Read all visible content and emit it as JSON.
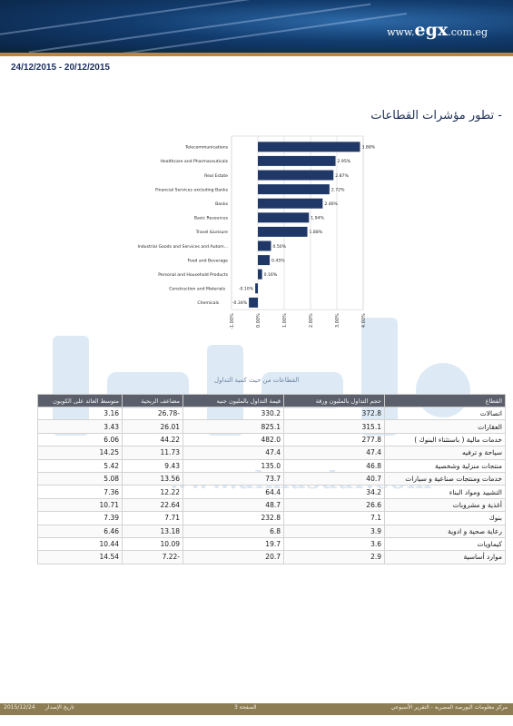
{
  "header": {
    "site_prefix": "www.",
    "site_brand": "egx",
    "site_suffix": ".com.eg"
  },
  "date_range": "24/12/2015 - 20/12/2015",
  "section_title": "- تطور مؤشرات القطاعات",
  "watermark": {
    "text": "www.almasdar.com"
  },
  "chart_data": {
    "type": "bar",
    "orientation": "horizontal",
    "categories": [
      "Telecommunications",
      "Healthcare and Pharmaceuticals",
      "Real Estate",
      "Financial Services excluding Banks",
      "Banks",
      "Basic Resources",
      "Travel &Leisure",
      "Industrial Goods and Services and Autom...",
      "Food and Beverage",
      "Personal and Household Products",
      "Construction and Materials",
      "Chemicals"
    ],
    "values": [
      3.88,
      2.95,
      2.87,
      2.72,
      2.46,
      1.94,
      1.88,
      0.5,
      0.45,
      0.16,
      -0.1,
      -0.34
    ],
    "value_labels": [
      "3.88%",
      "2.95%",
      "2.87%",
      "2.72%",
      "2.46%",
      "1.94%",
      "1.88%",
      "0.50%",
      "0.45%",
      "0.16%",
      "-0.10%",
      "-0.34%"
    ],
    "x_ticks": [
      -1,
      0,
      1,
      2,
      3,
      4
    ],
    "x_tick_labels": [
      "-1.00%",
      "0.00%",
      "1.00%",
      "2.00%",
      "3.00%",
      "4.00%"
    ],
    "xlim": [
      -1,
      4
    ],
    "bar_color": "#1f3868",
    "grid": true
  },
  "table": {
    "caption": "القطاعات من حيث كمية التداول",
    "headers": [
      "القطاع",
      "حجم التداول بالمليون ورقة",
      "قيمة التداول بالمليون جنيه",
      "مضاعف الربحية",
      "متوسط العائد على الكوبون"
    ],
    "rows": [
      [
        "اتصالات",
        "372.8",
        "330.2",
        "26.78-",
        "3.16"
      ],
      [
        "العقارات",
        "315.1",
        "825.1",
        "26.01",
        "3.43"
      ],
      [
        "خدمات مالية ( باستثناء البنوك )",
        "277.8",
        "482.0",
        "44.22",
        "6.06"
      ],
      [
        "سياحة و ترفيه",
        "47.4",
        "47.4",
        "11.73",
        "14.25"
      ],
      [
        "منتجات منزلية وشخصية",
        "46.8",
        "135.0",
        "9.43",
        "5.42"
      ],
      [
        "خدمات ومنتجات صناعية و سيارات",
        "40.7",
        "73.7",
        "13.56",
        "5.08"
      ],
      [
        "التشييد ومواد البناء",
        "34.2",
        "64.4",
        "12.22",
        "7.36"
      ],
      [
        "أغذية و مشروبات",
        "26.6",
        "48.7",
        "22.64",
        "10.71"
      ],
      [
        "بنوك",
        "7.1",
        "232.8",
        "7.71",
        "7.39"
      ],
      [
        "رعاية صحية و ادوية",
        "3.9",
        "6.8",
        "13.18",
        "6.46"
      ],
      [
        "كيماويات",
        "3.6",
        "19.7",
        "10.09",
        "10.44"
      ],
      [
        "موارد أساسية",
        "2.9",
        "20.7",
        "7.22-",
        "14.54"
      ]
    ]
  },
  "footer": {
    "date": "2015/12/24",
    "date_label": "تاريخ الإصدار",
    "page": "الصفحة 3",
    "source": "مركز معلومات البورصة المصرية - التقرير الأسبوعي"
  },
  "colors": {
    "navy": "#1f3868",
    "gold": "#b7893a",
    "table_header": "#5a5f6b",
    "footer": "#8c7d55"
  }
}
